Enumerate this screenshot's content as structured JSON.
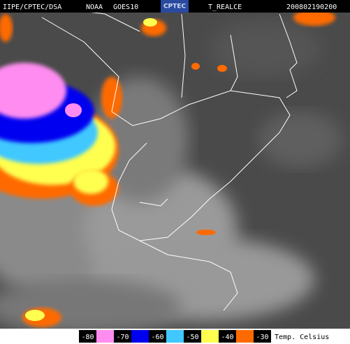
{
  "header": {
    "source": "IIPE/CPTEC/DSA",
    "satellite": "NOAA",
    "sensor": "GOES10",
    "logo": "CPTEC",
    "product": "T_REALCE",
    "timestamp": "200802190200"
  },
  "legend": {
    "items": [
      {
        "value": -80,
        "color": "#ff8cf0"
      },
      {
        "value": -70,
        "color": "#0000f0"
      },
      {
        "value": -60,
        "color": "#40c8ff"
      },
      {
        "value": -50,
        "color": "#ffff50"
      },
      {
        "value": -40,
        "color": "#ff6a00"
      },
      {
        "value": -30
      }
    ],
    "unit": "Temp. Celsius"
  }
}
